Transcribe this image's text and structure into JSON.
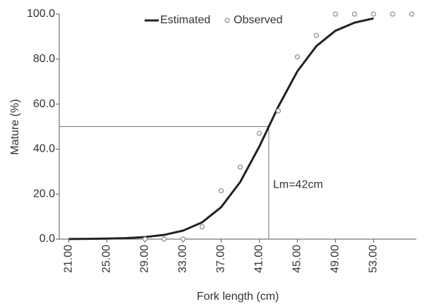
{
  "chart_data": {
    "type": "line",
    "x_label": "Fork length (cm)",
    "y_label": "Mature (%)",
    "xlim": [
      20,
      57.5
    ],
    "ylim": [
      0,
      100
    ],
    "xticks": [
      {
        "value": 21,
        "label": "21.00"
      },
      {
        "value": 25,
        "label": "25.00"
      },
      {
        "value": 29,
        "label": "29.00"
      },
      {
        "value": 33,
        "label": "33.00"
      },
      {
        "value": 37,
        "label": "37.00"
      },
      {
        "value": 41,
        "label": "41.00"
      },
      {
        "value": 45,
        "label": "45.00"
      },
      {
        "value": 49,
        "label": "49.00"
      },
      {
        "value": 53,
        "label": "53.00"
      }
    ],
    "yticks": [
      {
        "value": 0,
        "label": "0.0"
      },
      {
        "value": 20,
        "label": "20.0"
      },
      {
        "value": 40,
        "label": "40.0"
      },
      {
        "value": 60,
        "label": "60.0"
      },
      {
        "value": 80,
        "label": "80.0"
      },
      {
        "value": 100,
        "label": "100.0"
      }
    ],
    "series": [
      {
        "name": "Estimated",
        "color": "#222222",
        "x": [
          21,
          23,
          25,
          27,
          29,
          31,
          33,
          35,
          37,
          39,
          41,
          42,
          43,
          45,
          47,
          49,
          51,
          53
        ],
        "values": [
          0.05,
          0.11,
          0.22,
          0.45,
          0.92,
          1.87,
          3.77,
          7.45,
          14.2,
          25.4,
          41.1,
          50,
          58.9,
          74.6,
          85.8,
          92.6,
          96.2,
          98.1
        ]
      },
      {
        "name": "Observed",
        "color": "#888888",
        "x": [
          29,
          31,
          33,
          35,
          37,
          39,
          41,
          43,
          45,
          47,
          49,
          51,
          53,
          55,
          57
        ],
        "values": [
          0,
          0,
          0,
          5.5,
          21.5,
          32,
          47,
          57,
          81,
          90.5,
          100,
          100,
          100,
          100,
          100
        ]
      }
    ],
    "reference": {
      "x": 42,
      "y": 50
    },
    "annotation": "Lm=42cm",
    "legend": "top"
  }
}
